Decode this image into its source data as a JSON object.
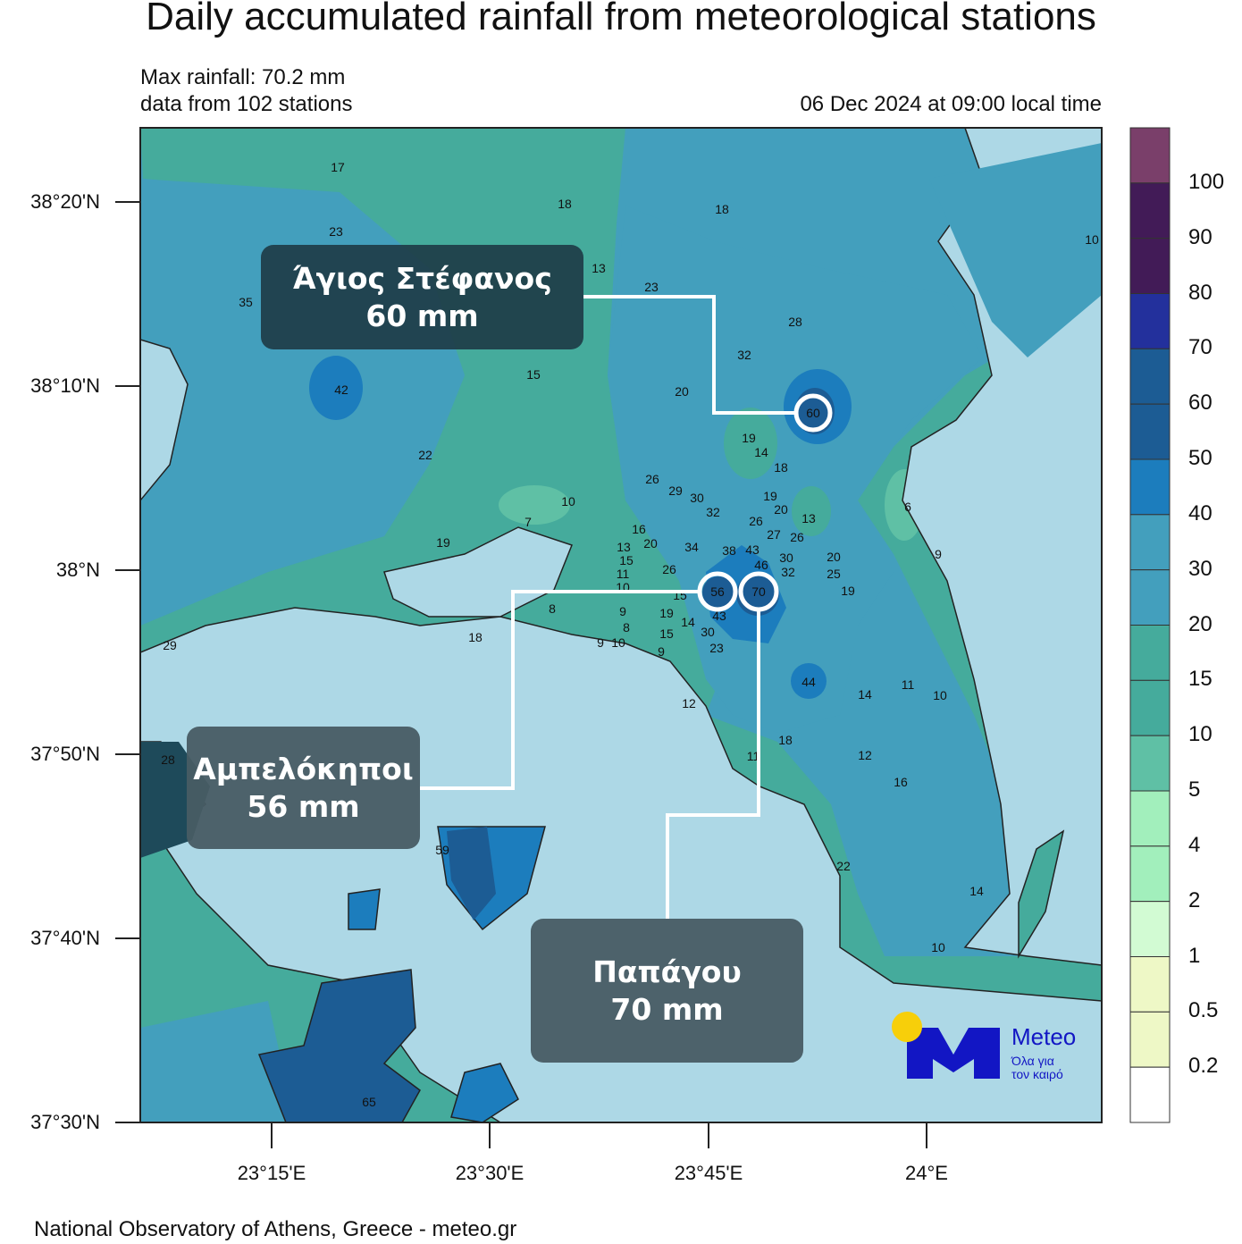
{
  "title": "Daily accumulated rainfall from meteorological stations",
  "max_rainfall": "Max rainfall: 70.2 mm",
  "stations_count": "data from 102 stations",
  "timestamp": "06 Dec 2024 at 09:00 local time",
  "footer": "National Observatory of Athens, Greece - meteo.gr",
  "lat_labels": [
    "38°20'N",
    "38°10'N",
    "38°N",
    "37°50'N",
    "37°40'N",
    "37°30'N"
  ],
  "lon_labels": [
    "23°15'E",
    "23°30'E",
    "23°45'E",
    "24°E"
  ],
  "legend": {
    "labels": [
      "100",
      "90",
      "80",
      "70",
      "60",
      "50",
      "40",
      "30",
      "20",
      "15",
      "10",
      "5",
      "4",
      "2",
      "1",
      "0.5",
      "0.2"
    ],
    "colors": [
      "#7a3f6a",
      "#421b57",
      "#421b57",
      "#23309c",
      "#1c5c94",
      "#1c5c94",
      "#1c7dbd",
      "#439fbd",
      "#439fbd",
      "#45ab9c",
      "#45ab9c",
      "#5fc0a5",
      "#a2efbc",
      "#a2efbc",
      "#d2fbd3",
      "#eef8c6",
      "#eef8c6",
      "#ffffff"
    ]
  },
  "colors": {
    "sea": "#add8e6",
    "coast": "#222222",
    "callout_line": "#ffffff"
  },
  "callouts": [
    {
      "name": "Άγιος Στέφανος",
      "value": "60 mm"
    },
    {
      "name": "Αμπελόκηποι",
      "value": "56 mm"
    },
    {
      "name": "Παπάγου",
      "value": "70 mm"
    }
  ],
  "stations": [
    "17",
    "18",
    "18",
    "23",
    "10",
    "13",
    "23",
    "35",
    "28",
    "32",
    "42",
    "15",
    "20",
    "60",
    "19",
    "14",
    "18",
    "22",
    "26",
    "29",
    "10",
    "30",
    "32",
    "19",
    "20",
    "26",
    "13",
    "6",
    "7",
    "27",
    "26",
    "16",
    "20",
    "19",
    "34",
    "38",
    "43",
    "13",
    "15",
    "46",
    "30",
    "32",
    "20",
    "25",
    "26",
    "11",
    "10",
    "19",
    "15",
    "56",
    "70",
    "8",
    "9",
    "19",
    "14",
    "15",
    "43",
    "30",
    "23",
    "8",
    "10",
    "9",
    "9",
    "18",
    "29",
    "44",
    "14",
    "11",
    "10",
    "12",
    "18",
    "12",
    "11",
    "16",
    "59",
    "22",
    "14",
    "10",
    "65",
    "9",
    "28"
  ],
  "logo": {
    "brand": "Meteo",
    "tagline_1": "Όλα για",
    "tagline_2": "τον καιρό",
    "colors": {
      "sun": "#f7cf0a",
      "m": "#1216c4"
    }
  }
}
